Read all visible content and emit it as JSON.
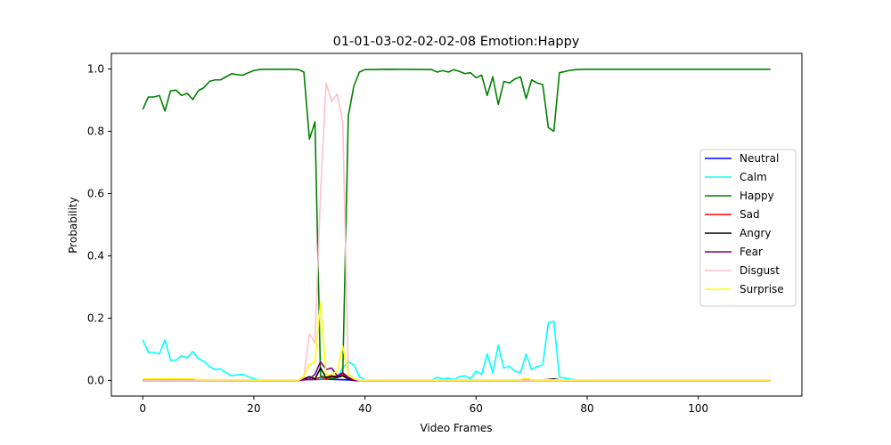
{
  "chart_data": {
    "type": "line",
    "title": "01-01-03-02-02-02-08 Emotion:Happy",
    "xlabel": "Video Frames",
    "ylabel": "Probability",
    "xlim": [
      -5.65,
      118.65
    ],
    "ylim": [
      -0.05,
      1.05
    ],
    "xticks": [
      0,
      20,
      40,
      60,
      80,
      100
    ],
    "yticks": [
      0.0,
      0.2,
      0.4,
      0.6,
      0.8,
      1.0
    ],
    "xtick_labels": [
      "0",
      "20",
      "40",
      "60",
      "80",
      "100"
    ],
    "ytick_labels": [
      "0.0",
      "0.2",
      "0.4",
      "0.6",
      "0.8",
      "1.0"
    ],
    "grid": false,
    "legend_position": "center-right",
    "series": [
      {
        "name": "Neutral",
        "color": "#0000ff",
        "points": [
          [
            0,
            0
          ],
          [
            28,
            0
          ],
          [
            29,
            0.002
          ],
          [
            31,
            0.003
          ],
          [
            33,
            0.004
          ],
          [
            35,
            0.003
          ],
          [
            37,
            0.002
          ],
          [
            38,
            0
          ],
          [
            113,
            0
          ]
        ]
      },
      {
        "name": "Calm",
        "color": "#00ffff",
        "points": [
          [
            0,
            0.13
          ],
          [
            1,
            0.09
          ],
          [
            2,
            0.09
          ],
          [
            3,
            0.085
          ],
          [
            4,
            0.13
          ],
          [
            5,
            0.065
          ],
          [
            6,
            0.065
          ],
          [
            7,
            0.08
          ],
          [
            8,
            0.072
          ],
          [
            9,
            0.093
          ],
          [
            10,
            0.07
          ],
          [
            11,
            0.062
          ],
          [
            12,
            0.045
          ],
          [
            13,
            0.035
          ],
          [
            14,
            0.037
          ],
          [
            15,
            0.025
          ],
          [
            16,
            0.015
          ],
          [
            17,
            0.018
          ],
          [
            18,
            0.02
          ],
          [
            19,
            0.012
          ],
          [
            20,
            0.005
          ],
          [
            21,
            0.002
          ],
          [
            25,
            0.001
          ],
          [
            28,
            0.001
          ],
          [
            29,
            0.002
          ],
          [
            30,
            0.003
          ],
          [
            31,
            0.005
          ],
          [
            33,
            0.005
          ],
          [
            35,
            0.01
          ],
          [
            36,
            0.04
          ],
          [
            37,
            0.06
          ],
          [
            38,
            0.05
          ],
          [
            39,
            0.012
          ],
          [
            40,
            0.002
          ],
          [
            44,
            0.001
          ],
          [
            52,
            0.001
          ],
          [
            53,
            0.01
          ],
          [
            54,
            0.005
          ],
          [
            55,
            0.008
          ],
          [
            56,
            0.002
          ],
          [
            57,
            0.012
          ],
          [
            58,
            0.015
          ],
          [
            59,
            0.005
          ],
          [
            60,
            0.03
          ],
          [
            61,
            0.02
          ],
          [
            62,
            0.085
          ],
          [
            63,
            0.025
          ],
          [
            64,
            0.113
          ],
          [
            65,
            0.04
          ],
          [
            66,
            0.045
          ],
          [
            67,
            0.03
          ],
          [
            68,
            0.025
          ],
          [
            69,
            0.085
          ],
          [
            70,
            0.035
          ],
          [
            71,
            0.045
          ],
          [
            72,
            0.05
          ],
          [
            73,
            0.185
          ],
          [
            74,
            0.19
          ],
          [
            75,
            0.01
          ],
          [
            76,
            0.008
          ],
          [
            77,
            0.004
          ],
          [
            78,
            0.002
          ],
          [
            80,
            0.001
          ],
          [
            113,
            0.001
          ]
        ]
      },
      {
        "name": "Happy",
        "color": "#008000",
        "points": [
          [
            0,
            0.87
          ],
          [
            1,
            0.91
          ],
          [
            2,
            0.91
          ],
          [
            3,
            0.915
          ],
          [
            4,
            0.865
          ],
          [
            5,
            0.93
          ],
          [
            6,
            0.932
          ],
          [
            7,
            0.915
          ],
          [
            8,
            0.922
          ],
          [
            9,
            0.902
          ],
          [
            10,
            0.93
          ],
          [
            11,
            0.94
          ],
          [
            12,
            0.96
          ],
          [
            13,
            0.965
          ],
          [
            14,
            0.965
          ],
          [
            15,
            0.975
          ],
          [
            16,
            0.985
          ],
          [
            17,
            0.982
          ],
          [
            18,
            0.98
          ],
          [
            19,
            0.988
          ],
          [
            20,
            0.995
          ],
          [
            21,
            0.998
          ],
          [
            22,
            0.999
          ],
          [
            27,
            0.999
          ],
          [
            28,
            0.998
          ],
          [
            29,
            0.99
          ],
          [
            30,
            0.775
          ],
          [
            31,
            0.83
          ],
          [
            32,
            0.015
          ],
          [
            33,
            0.01
          ],
          [
            34,
            0.005
          ],
          [
            35,
            0.01
          ],
          [
            36,
            0.02
          ],
          [
            37,
            0.85
          ],
          [
            38,
            0.945
          ],
          [
            39,
            0.99
          ],
          [
            40,
            0.998
          ],
          [
            41,
            0.998
          ],
          [
            44,
            0.999
          ],
          [
            52,
            0.998
          ],
          [
            53,
            0.99
          ],
          [
            54,
            0.995
          ],
          [
            55,
            0.99
          ],
          [
            56,
            0.998
          ],
          [
            57,
            0.992
          ],
          [
            58,
            0.985
          ],
          [
            59,
            0.988
          ],
          [
            60,
            0.972
          ],
          [
            61,
            0.98
          ],
          [
            62,
            0.915
          ],
          [
            63,
            0.975
          ],
          [
            64,
            0.886
          ],
          [
            65,
            0.96
          ],
          [
            66,
            0.955
          ],
          [
            67,
            0.968
          ],
          [
            68,
            0.975
          ],
          [
            69,
            0.905
          ],
          [
            70,
            0.965
          ],
          [
            71,
            0.955
          ],
          [
            72,
            0.95
          ],
          [
            73,
            0.812
          ],
          [
            74,
            0.8
          ],
          [
            75,
            0.988
          ],
          [
            76,
            0.992
          ],
          [
            77,
            0.996
          ],
          [
            78,
            0.998
          ],
          [
            80,
            0.999
          ],
          [
            113,
            0.999
          ]
        ]
      },
      {
        "name": "Sad",
        "color": "#ff0000",
        "points": [
          [
            0,
            0
          ],
          [
            28,
            0
          ],
          [
            29,
            0.002
          ],
          [
            31,
            0.005
          ],
          [
            32,
            0.01
          ],
          [
            33,
            0.006
          ],
          [
            35,
            0.015
          ],
          [
            36,
            0.02
          ],
          [
            37,
            0.01
          ],
          [
            38,
            0
          ],
          [
            113,
            0
          ]
        ]
      },
      {
        "name": "Angry",
        "color": "#000000",
        "points": [
          [
            0,
            0
          ],
          [
            28,
            0
          ],
          [
            29,
            0.005
          ],
          [
            30,
            0.012
          ],
          [
            31,
            0.005
          ],
          [
            32,
            0.04
          ],
          [
            33,
            0.01
          ],
          [
            34,
            0.015
          ],
          [
            35,
            0.01
          ],
          [
            36,
            0.015
          ],
          [
            37,
            0.005
          ],
          [
            38,
            0
          ],
          [
            70,
            0
          ],
          [
            72,
            0.002
          ],
          [
            73,
            0.003
          ],
          [
            74,
            0.005
          ],
          [
            75,
            0.002
          ],
          [
            76,
            0
          ],
          [
            113,
            0
          ]
        ]
      },
      {
        "name": "Fear",
        "color": "#800080",
        "points": [
          [
            0,
            0
          ],
          [
            28,
            0
          ],
          [
            29,
            0.003
          ],
          [
            30,
            0.005
          ],
          [
            31,
            0.02
          ],
          [
            32,
            0.06
          ],
          [
            33,
            0.035
          ],
          [
            34,
            0.04
          ],
          [
            35,
            0.015
          ],
          [
            36,
            0.025
          ],
          [
            37,
            0.01
          ],
          [
            38,
            0
          ],
          [
            113,
            0
          ]
        ]
      },
      {
        "name": "Disgust",
        "color": "#ffc0cb",
        "points": [
          [
            0,
            0
          ],
          [
            28,
            0
          ],
          [
            29,
            0.01
          ],
          [
            30,
            0.15
          ],
          [
            31,
            0.12
          ],
          [
            32,
            0.6
          ],
          [
            33,
            0.955
          ],
          [
            34,
            0.895
          ],
          [
            35,
            0.92
          ],
          [
            36,
            0.83
          ],
          [
            37,
            0.02
          ],
          [
            38,
            0.005
          ],
          [
            39,
            0
          ],
          [
            113,
            0
          ]
        ]
      },
      {
        "name": "Surprise",
        "color": "#ffff00",
        "points": [
          [
            0,
            0.005
          ],
          [
            5,
            0.006
          ],
          [
            9,
            0.005
          ],
          [
            10,
            0.003
          ],
          [
            20,
            0.002
          ],
          [
            28,
            0.002
          ],
          [
            29,
            0.015
          ],
          [
            30,
            0.05
          ],
          [
            31,
            0.06
          ],
          [
            32,
            0.25
          ],
          [
            33,
            0.015
          ],
          [
            34,
            0.02
          ],
          [
            35,
            0.03
          ],
          [
            36,
            0.11
          ],
          [
            37,
            0.02
          ],
          [
            38,
            0.005
          ],
          [
            39,
            0.002
          ],
          [
            68,
            0.002
          ],
          [
            69,
            0.008
          ],
          [
            70,
            0.002
          ],
          [
            113,
            0.002
          ]
        ]
      }
    ]
  }
}
